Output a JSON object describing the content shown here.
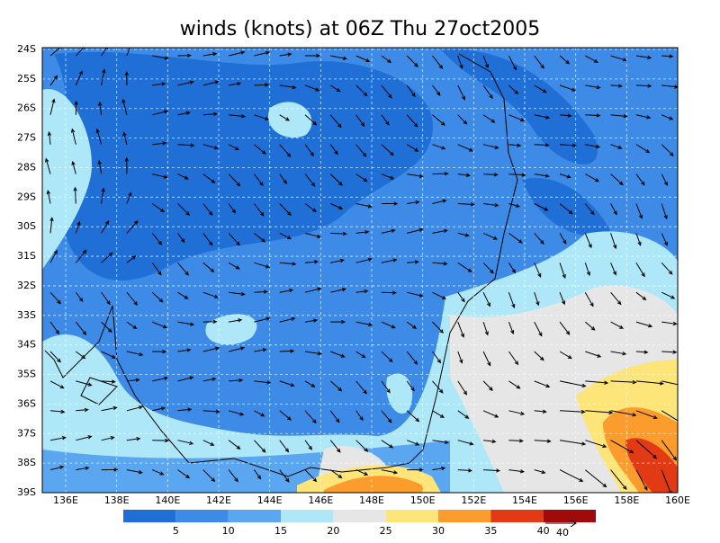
{
  "title": "winds (knots) at 06Z Thu 27oct2005",
  "lat_labels": [
    "24S",
    "25S",
    "26S",
    "27S",
    "28S",
    "29S",
    "30S",
    "31S",
    "32S",
    "33S",
    "34S",
    "35S",
    "36S",
    "37S",
    "38S",
    "39S"
  ],
  "lon_labels": [
    "136E",
    "138E",
    "140E",
    "142E",
    "144E",
    "146E",
    "148E",
    "150E",
    "152E",
    "154E",
    "156E",
    "158E",
    "160E"
  ],
  "colorbar": {
    "labels": [
      "5",
      "10",
      "15",
      "20",
      "25",
      "30",
      "35",
      "40"
    ],
    "colors": [
      "#1f6fd6",
      "#3d8be6",
      "#5aa6f0",
      "#aee8f8",
      "#e6e6e6",
      "#fde57a",
      "#fb9c2c",
      "#e23a14",
      "#a00a0a"
    ]
  },
  "reference_vector": "40"
}
